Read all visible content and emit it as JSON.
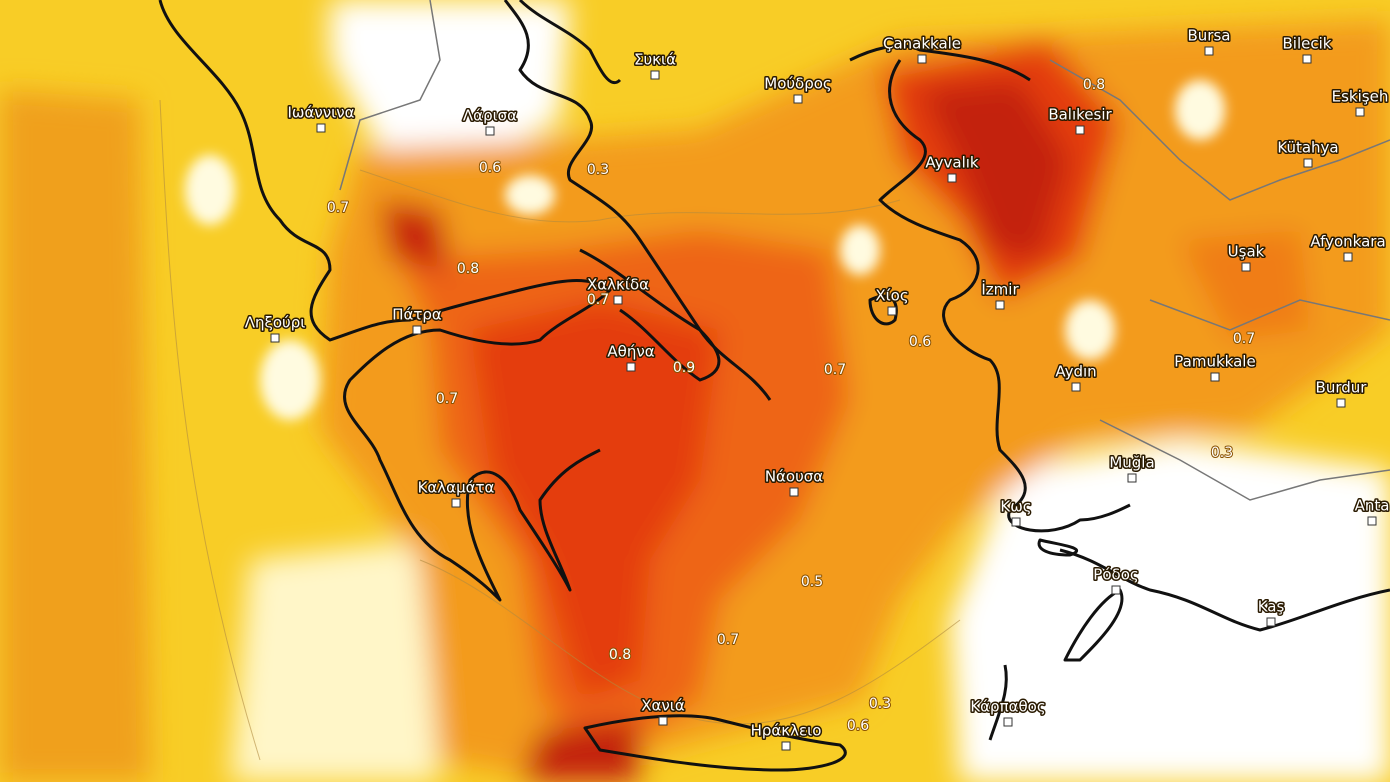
{
  "cities": [
    "Ιωάννινα",
    "Λάρισα",
    "Συκιά",
    "Μούδρος",
    "Çanakkale",
    "Bursa",
    "Bilecik",
    "Eskişeh",
    "Balıkesir",
    "Kütahya",
    "Ayvalık",
    "Afyonkara",
    "Uşak",
    "İzmir",
    "Χίος",
    "Χαλκίδα",
    "Πάτρα",
    "Ληξούρι",
    "Αθήνα",
    "Aydın",
    "Pamukkale",
    "Burdur",
    "Muğla",
    "Νάουσα",
    "Καλαμάτα",
    "Κως",
    "Anta",
    "Ρόδος",
    "Kaş",
    "Κάρπαθος",
    "Χανιά",
    "Ηράκλειο"
  ],
  "contour_labels": [
    0.6,
    0.3,
    0.8,
    0.7,
    0.8,
    0.7,
    0.9,
    0.7,
    0.6,
    0.7,
    0.7,
    0.3,
    0.5,
    0.7,
    0.8,
    0.3,
    0.6
  ]
}
